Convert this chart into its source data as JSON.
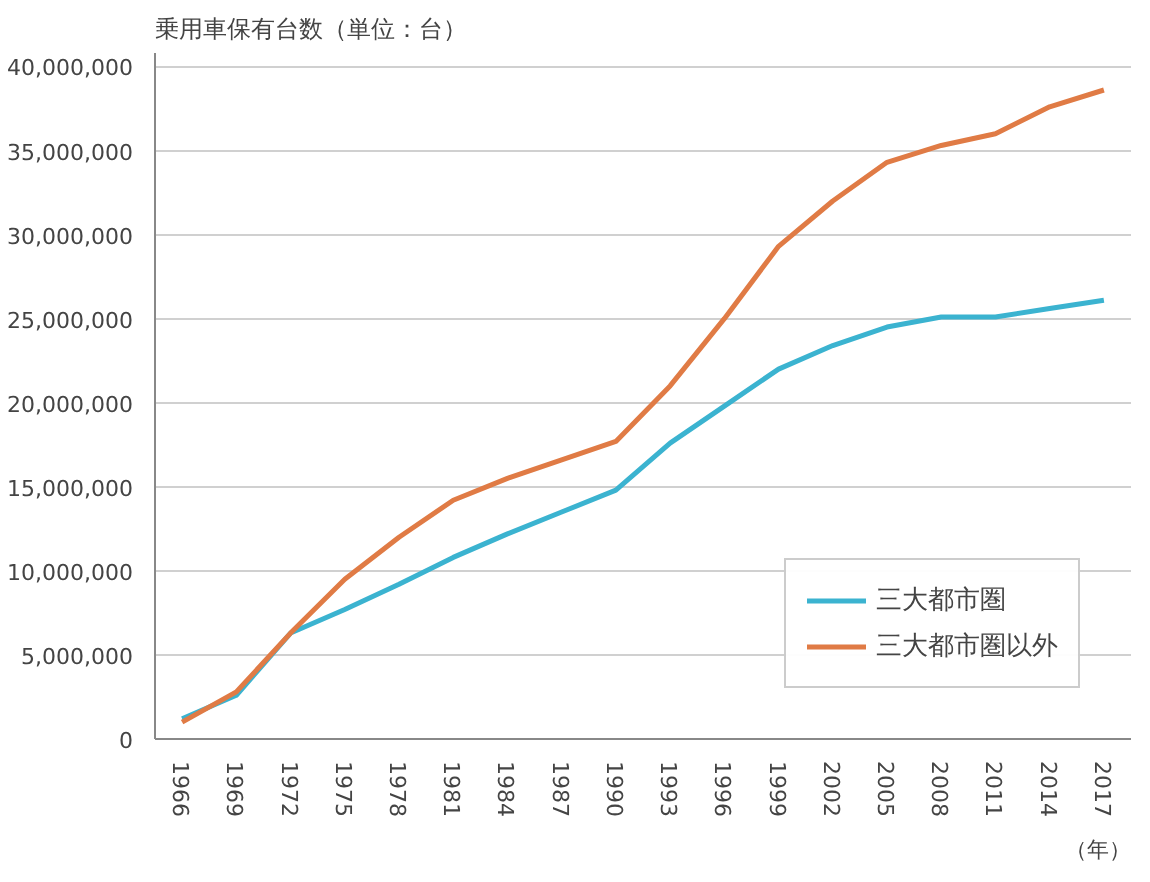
{
  "chart_data": {
    "type": "line",
    "title": "乗用車保有台数（単位：台）",
    "xlabel": "（年）",
    "categories": [
      "1966",
      "1969",
      "1972",
      "1975",
      "1978",
      "1981",
      "1984",
      "1987",
      "1990",
      "1993",
      "1996",
      "1999",
      "2002",
      "2005",
      "2008",
      "2011",
      "2014",
      "2017"
    ],
    "series": [
      {
        "name": "三大都市圏",
        "color": "#3bb3d0",
        "values": [
          1200000,
          2600000,
          6300000,
          7700000,
          9200000,
          10800000,
          12200000,
          13500000,
          14800000,
          17600000,
          19800000,
          22000000,
          23400000,
          24500000,
          25100000,
          25100000,
          25600000,
          26100000
        ]
      },
      {
        "name": "三大都市圏以外",
        "color": "#e07b45",
        "values": [
          1000000,
          2800000,
          6300000,
          9500000,
          12000000,
          14200000,
          15500000,
          16600000,
          17700000,
          21000000,
          25000000,
          29300000,
          32000000,
          34300000,
          35300000,
          36000000,
          37600000,
          38600000
        ]
      }
    ],
    "ylim": [
      0,
      40000000
    ],
    "yticks": [
      0,
      {
        "value": 5000000,
        "label": "5,000,000"
      },
      {
        "value": 10000000,
        "label": "10,000,000"
      },
      {
        "value": 15000000,
        "label": "15,000,000"
      },
      {
        "value": 20000000,
        "label": "20,000,000"
      },
      {
        "value": 25000000,
        "label": "25,000,000"
      },
      {
        "value": 30000000,
        "label": "30,000,000"
      },
      {
        "value": 35000000,
        "label": "35,000,000"
      },
      {
        "value": 40000000,
        "label": "40,000,000"
      }
    ],
    "grid": "y",
    "legend": "bottom right",
    "marker": "none",
    "line_style": "solid"
  }
}
